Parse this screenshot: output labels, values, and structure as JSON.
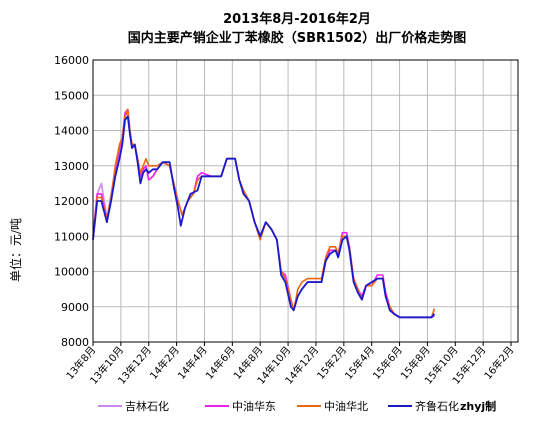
{
  "chart_data": {
    "type": "line",
    "title": "2013年8月-2016年2月",
    "subtitle": "国内主要产销企业丁苯橡胶（SBR1502）出厂价格走势图",
    "ylabel": "单位：元/吨",
    "ylim": [
      8000,
      16000
    ],
    "yticks": [
      8000,
      9000,
      10000,
      11000,
      12000,
      13000,
      14000,
      15000,
      16000
    ],
    "categories": [
      "13年8月",
      "13年10月",
      "13年12月",
      "14年2月",
      "14年4月",
      "14年6月",
      "14年8月",
      "14年10月",
      "14年12月",
      "15年2月",
      "15年4月",
      "15年6月",
      "15年8月",
      "15年10月",
      "15年12月",
      "16年2月"
    ],
    "grid": true,
    "legend_position": "bottom",
    "credit": "zhyj制",
    "series": [
      {
        "name": "吉林石化",
        "color": "#cc88ee",
        "values": [
          [
            0,
            11000
          ],
          [
            0.3,
            12200
          ],
          [
            0.6,
            12500
          ],
          [
            1.0,
            11500
          ],
          [
            1.3,
            12200
          ],
          [
            1.6,
            12900
          ],
          [
            1.9,
            13300
          ],
          [
            2.1,
            13800
          ],
          [
            2.3,
            14400
          ],
          [
            2.5,
            14500
          ],
          [
            2.65,
            14000
          ],
          [
            2.8,
            13600
          ],
          [
            3.0,
            13600
          ],
          [
            3.2,
            13200
          ],
          [
            3.4,
            12700
          ],
          [
            3.6,
            12900
          ],
          [
            3.8,
            13000
          ],
          [
            4.0,
            12600
          ],
          [
            4.3,
            12700
          ],
          [
            4.6,
            12900
          ],
          [
            5.0,
            13100
          ],
          [
            5.5,
            13000
          ],
          [
            5.8,
            12500
          ],
          [
            6.1,
            12000
          ],
          [
            6.4,
            11600
          ],
          [
            6.8,
            12000
          ],
          [
            7.2,
            12200
          ],
          [
            7.5,
            12600
          ],
          [
            7.8,
            12700
          ],
          [
            8.5,
            12700
          ],
          [
            9.2,
            12700
          ],
          [
            9.6,
            13200
          ],
          [
            10.2,
            13200
          ],
          [
            10.5,
            12600
          ],
          [
            10.8,
            12300
          ],
          [
            11.2,
            12000
          ],
          [
            11.6,
            11400
          ],
          [
            12.0,
            11000
          ],
          [
            12.4,
            11400
          ],
          [
            12.8,
            11200
          ],
          [
            13.2,
            10900
          ],
          [
            13.5,
            10000
          ],
          [
            13.8,
            9900
          ],
          [
            14.2,
            9200
          ],
          [
            14.4,
            8900
          ],
          [
            14.7,
            9300
          ],
          [
            15.0,
            9500
          ],
          [
            15.4,
            9700
          ],
          [
            16.0,
            9700
          ],
          [
            16.4,
            9700
          ],
          [
            16.7,
            10300
          ],
          [
            17.0,
            10600
          ],
          [
            17.4,
            10600
          ],
          [
            17.6,
            10500
          ],
          [
            17.9,
            11000
          ],
          [
            18.2,
            11000
          ],
          [
            18.4,
            10700
          ],
          [
            18.7,
            9800
          ],
          [
            19.0,
            9500
          ],
          [
            19.3,
            9300
          ],
          [
            19.6,
            9600
          ],
          [
            20.0,
            9600
          ],
          [
            20.4,
            9800
          ],
          [
            20.8,
            9800
          ],
          [
            21.0,
            9400
          ],
          [
            21.3,
            9000
          ],
          [
            21.6,
            8800
          ],
          [
            22.0,
            8700
          ],
          [
            23.0,
            8700
          ],
          [
            24.0,
            8700
          ],
          [
            24.3,
            8700
          ],
          [
            24.5,
            8750
          ]
        ]
      },
      {
        "name": "中油华东",
        "color": "#ee22ee",
        "values": [
          [
            0,
            11000
          ],
          [
            0.3,
            12200
          ],
          [
            0.6,
            12200
          ],
          [
            1.0,
            11500
          ],
          [
            1.3,
            12000
          ],
          [
            1.6,
            12900
          ],
          [
            1.9,
            13500
          ],
          [
            2.1,
            13800
          ],
          [
            2.3,
            14500
          ],
          [
            2.5,
            14600
          ],
          [
            2.65,
            14000
          ],
          [
            2.8,
            13600
          ],
          [
            3.0,
            13600
          ],
          [
            3.2,
            13200
          ],
          [
            3.4,
            12700
          ],
          [
            3.6,
            12900
          ],
          [
            3.8,
            13000
          ],
          [
            4.0,
            12600
          ],
          [
            4.3,
            12700
          ],
          [
            4.6,
            12900
          ],
          [
            5.0,
            13100
          ],
          [
            5.5,
            13000
          ],
          [
            5.8,
            12500
          ],
          [
            6.1,
            12000
          ],
          [
            6.4,
            11600
          ],
          [
            6.8,
            12000
          ],
          [
            7.2,
            12200
          ],
          [
            7.5,
            12700
          ],
          [
            7.8,
            12800
          ],
          [
            8.5,
            12700
          ],
          [
            9.2,
            12700
          ],
          [
            9.6,
            13200
          ],
          [
            10.2,
            13200
          ],
          [
            10.5,
            12600
          ],
          [
            10.8,
            12300
          ],
          [
            11.2,
            12000
          ],
          [
            11.6,
            11400
          ],
          [
            12.0,
            11000
          ],
          [
            12.4,
            11400
          ],
          [
            12.8,
            11200
          ],
          [
            13.2,
            10900
          ],
          [
            13.5,
            10000
          ],
          [
            13.8,
            9900
          ],
          [
            14.2,
            9200
          ],
          [
            14.4,
            8900
          ],
          [
            14.7,
            9300
          ],
          [
            15.0,
            9500
          ],
          [
            15.4,
            9700
          ],
          [
            16.0,
            9700
          ],
          [
            16.4,
            9700
          ],
          [
            16.7,
            10300
          ],
          [
            17.0,
            10600
          ],
          [
            17.4,
            10600
          ],
          [
            17.6,
            10500
          ],
          [
            17.9,
            11100
          ],
          [
            18.2,
            11100
          ],
          [
            18.4,
            10700
          ],
          [
            18.7,
            9800
          ],
          [
            19.0,
            9500
          ],
          [
            19.3,
            9300
          ],
          [
            19.6,
            9600
          ],
          [
            20.0,
            9600
          ],
          [
            20.4,
            9900
          ],
          [
            20.8,
            9900
          ],
          [
            21.0,
            9400
          ],
          [
            21.3,
            9000
          ],
          [
            21.6,
            8800
          ],
          [
            22.0,
            8700
          ],
          [
            23.0,
            8700
          ],
          [
            24.0,
            8700
          ],
          [
            24.3,
            8700
          ],
          [
            24.5,
            8750
          ]
        ]
      },
      {
        "name": "中油华北",
        "color": "#ee6611",
        "values": [
          [
            0,
            11000
          ],
          [
            0.3,
            12100
          ],
          [
            0.6,
            12100
          ],
          [
            1.0,
            11500
          ],
          [
            1.3,
            12100
          ],
          [
            1.6,
            13000
          ],
          [
            1.9,
            13600
          ],
          [
            2.1,
            13800
          ],
          [
            2.3,
            14400
          ],
          [
            2.5,
            14600
          ],
          [
            2.65,
            14000
          ],
          [
            2.8,
            13600
          ],
          [
            3.0,
            13600
          ],
          [
            3.2,
            13200
          ],
          [
            3.4,
            12800
          ],
          [
            3.6,
            13000
          ],
          [
            3.8,
            13200
          ],
          [
            4.0,
            13000
          ],
          [
            4.3,
            13000
          ],
          [
            4.6,
            13000
          ],
          [
            5.0,
            13100
          ],
          [
            5.5,
            13000
          ],
          [
            5.8,
            12500
          ],
          [
            6.1,
            12000
          ],
          [
            6.4,
            11600
          ],
          [
            6.8,
            12000
          ],
          [
            7.2,
            12200
          ],
          [
            7.5,
            12600
          ],
          [
            7.8,
            12700
          ],
          [
            8.5,
            12700
          ],
          [
            9.2,
            12700
          ],
          [
            9.6,
            13200
          ],
          [
            10.2,
            13200
          ],
          [
            10.5,
            12600
          ],
          [
            10.8,
            12300
          ],
          [
            11.2,
            12000
          ],
          [
            11.6,
            11400
          ],
          [
            12.0,
            10900
          ],
          [
            12.4,
            11400
          ],
          [
            12.8,
            11200
          ],
          [
            13.2,
            10900
          ],
          [
            13.5,
            10000
          ],
          [
            13.8,
            9800
          ],
          [
            14.2,
            9200
          ],
          [
            14.4,
            8900
          ],
          [
            14.7,
            9500
          ],
          [
            15.0,
            9700
          ],
          [
            15.4,
            9800
          ],
          [
            16.0,
            9800
          ],
          [
            16.4,
            9800
          ],
          [
            16.7,
            10400
          ],
          [
            17.0,
            10700
          ],
          [
            17.4,
            10700
          ],
          [
            17.6,
            10500
          ],
          [
            17.9,
            11000
          ],
          [
            18.2,
            11000
          ],
          [
            18.4,
            10700
          ],
          [
            18.7,
            9800
          ],
          [
            19.0,
            9500
          ],
          [
            19.3,
            9200
          ],
          [
            19.6,
            9600
          ],
          [
            20.0,
            9600
          ],
          [
            20.4,
            9800
          ],
          [
            20.8,
            9800
          ],
          [
            21.0,
            9300
          ],
          [
            21.3,
            9000
          ],
          [
            21.6,
            8800
          ],
          [
            22.0,
            8700
          ],
          [
            23.0,
            8700
          ],
          [
            24.0,
            8700
          ],
          [
            24.3,
            8700
          ],
          [
            24.5,
            8950
          ]
        ]
      },
      {
        "name": "齐鲁石化",
        "color": "#1a1acc",
        "values": [
          [
            0,
            10900
          ],
          [
            0.3,
            12000
          ],
          [
            0.6,
            12000
          ],
          [
            1.0,
            11400
          ],
          [
            1.3,
            12000
          ],
          [
            1.6,
            12700
          ],
          [
            1.9,
            13200
          ],
          [
            2.1,
            13600
          ],
          [
            2.3,
            14300
          ],
          [
            2.5,
            14400
          ],
          [
            2.65,
            13900
          ],
          [
            2.8,
            13500
          ],
          [
            3.0,
            13600
          ],
          [
            3.2,
            13100
          ],
          [
            3.4,
            12500
          ],
          [
            3.6,
            12800
          ],
          [
            3.8,
            12900
          ],
          [
            4.0,
            12800
          ],
          [
            4.3,
            12900
          ],
          [
            4.6,
            12900
          ],
          [
            5.0,
            13100
          ],
          [
            5.5,
            13100
          ],
          [
            5.8,
            12400
          ],
          [
            6.1,
            11800
          ],
          [
            6.3,
            11300
          ],
          [
            6.6,
            11800
          ],
          [
            7.0,
            12200
          ],
          [
            7.5,
            12300
          ],
          [
            7.8,
            12700
          ],
          [
            8.5,
            12700
          ],
          [
            9.2,
            12700
          ],
          [
            9.6,
            13200
          ],
          [
            10.2,
            13200
          ],
          [
            10.5,
            12600
          ],
          [
            10.8,
            12200
          ],
          [
            11.2,
            12000
          ],
          [
            11.6,
            11400
          ],
          [
            12.0,
            11000
          ],
          [
            12.4,
            11400
          ],
          [
            12.8,
            11200
          ],
          [
            13.2,
            10900
          ],
          [
            13.5,
            9900
          ],
          [
            13.8,
            9700
          ],
          [
            14.2,
            9000
          ],
          [
            14.4,
            8900
          ],
          [
            14.7,
            9300
          ],
          [
            15.0,
            9500
          ],
          [
            15.4,
            9700
          ],
          [
            16.0,
            9700
          ],
          [
            16.4,
            9700
          ],
          [
            16.7,
            10300
          ],
          [
            17.0,
            10500
          ],
          [
            17.4,
            10600
          ],
          [
            17.6,
            10400
          ],
          [
            17.9,
            10900
          ],
          [
            18.2,
            11000
          ],
          [
            18.4,
            10600
          ],
          [
            18.7,
            9700
          ],
          [
            19.0,
            9400
          ],
          [
            19.3,
            9200
          ],
          [
            19.6,
            9600
          ],
          [
            20.0,
            9700
          ],
          [
            20.4,
            9800
          ],
          [
            20.8,
            9800
          ],
          [
            21.0,
            9300
          ],
          [
            21.3,
            8900
          ],
          [
            21.6,
            8800
          ],
          [
            22.0,
            8700
          ],
          [
            23.0,
            8700
          ],
          [
            24.0,
            8700
          ],
          [
            24.3,
            8700
          ],
          [
            24.5,
            8800
          ]
        ]
      }
    ]
  }
}
